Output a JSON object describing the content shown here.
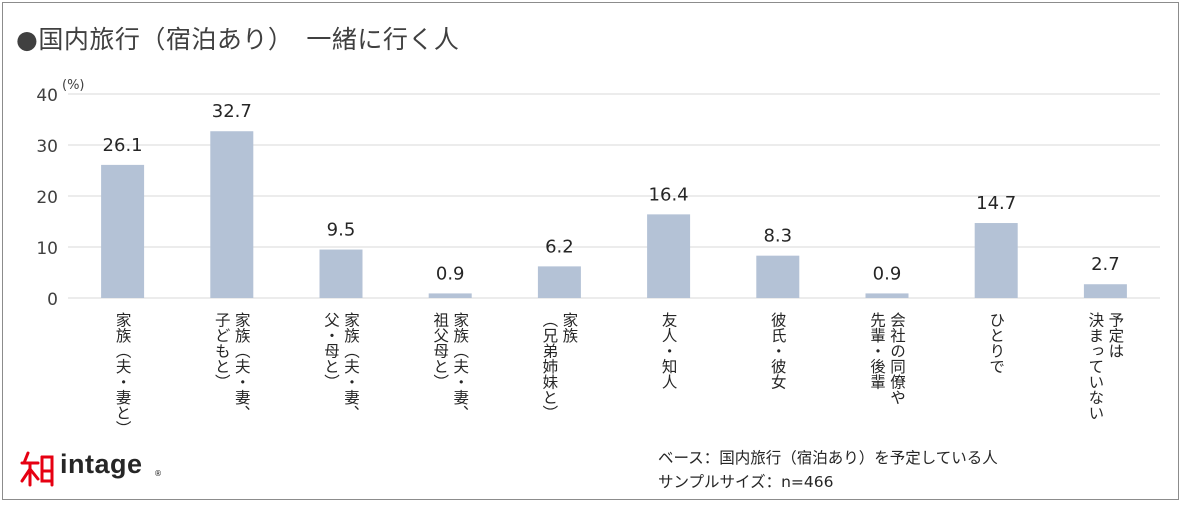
{
  "title": "●国内旅行（宿泊あり）　一緒に行く人",
  "footnote": {
    "base": "ベース：国内旅行（宿泊あり）を予定している人",
    "sample": "サンプルサイズ：n=466"
  },
  "logo": {
    "icon": "intage-logo-icon",
    "text": "intage",
    "mark": "®"
  },
  "colors": {
    "bar": "#b4c2d6",
    "grid": "#d9d9d9",
    "text": "#404040",
    "logo": "#e60012"
  },
  "chart_data": {
    "type": "bar",
    "ylabel": "(%)",
    "ylim": [
      0,
      40
    ],
    "yticks": [
      0,
      10,
      20,
      30,
      40
    ],
    "grid": true,
    "categories": [
      [
        "家族（夫・妻と）"
      ],
      [
        "家族（夫・妻、",
        "子どもと）"
      ],
      [
        "家族（夫・妻、",
        "父・母と）"
      ],
      [
        "家族（夫・妻、",
        "祖父母と）"
      ],
      [
        "家族",
        "（兄弟姉妹と）"
      ],
      [
        "友人・知人"
      ],
      [
        "彼氏・彼女"
      ],
      [
        "会社の同僚や",
        "先輩・後輩"
      ],
      [
        "ひとりで"
      ],
      [
        "予定は",
        "決まっていない"
      ]
    ],
    "values": [
      26.1,
      32.7,
      9.5,
      0.9,
      6.2,
      16.4,
      8.3,
      0.9,
      14.7,
      2.7
    ]
  }
}
